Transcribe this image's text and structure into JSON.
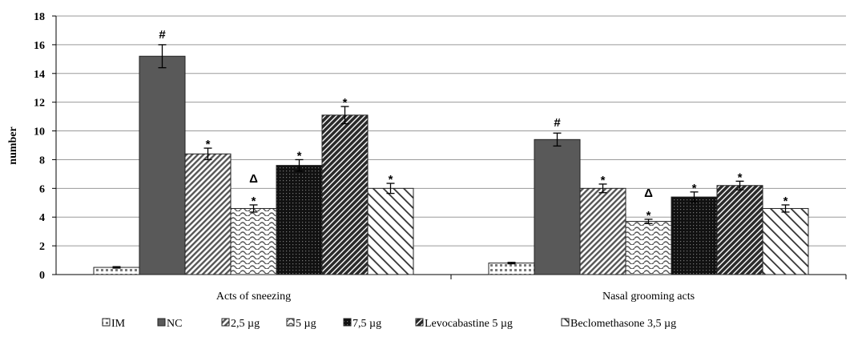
{
  "chart_data": {
    "type": "bar",
    "title": "",
    "xlabel": "",
    "ylabel": "number",
    "ylim": [
      0,
      18
    ],
    "yticks": [
      0,
      2,
      4,
      6,
      8,
      10,
      12,
      14,
      16,
      18
    ],
    "grid": true,
    "legend_position": "bottom",
    "categories": [
      "Acts of sneezing",
      "Nasal grooming acts"
    ],
    "series": [
      {
        "name": "IM",
        "values": [
          0.5,
          0.8
        ],
        "errors": [
          0.05,
          0.05
        ],
        "annotations": [
          "",
          ""
        ],
        "pattern": "dots",
        "color": "#ffffff"
      },
      {
        "name": "NC",
        "values": [
          15.2,
          9.4
        ],
        "errors": [
          0.8,
          0.45
        ],
        "annotations": [
          "#",
          "#"
        ],
        "pattern": "solid",
        "color": "#595959"
      },
      {
        "name": "2,5 µg",
        "values": [
          8.4,
          6.0
        ],
        "errors": [
          0.4,
          0.3
        ],
        "annotations": [
          "*",
          "*"
        ],
        "pattern": "dense-diagonal",
        "color": "#888888"
      },
      {
        "name": "5 µg",
        "values": [
          4.6,
          3.7
        ],
        "errors": [
          0.25,
          0.15
        ],
        "annotations": [
          "*Δ",
          "*Δ"
        ],
        "pattern": "waves",
        "color": "#ffffff"
      },
      {
        "name": "7,5  µg",
        "values": [
          7.6,
          5.4
        ],
        "errors": [
          0.4,
          0.35
        ],
        "annotations": [
          "*",
          "*"
        ],
        "pattern": "dark-dots",
        "color": "#1a1a1a"
      },
      {
        "name": "Levocabastine 5 µg",
        "values": [
          11.1,
          6.2
        ],
        "errors": [
          0.6,
          0.3
        ],
        "annotations": [
          "*",
          "*"
        ],
        "pattern": "dark-diagonal",
        "color": "#3a3a3a"
      },
      {
        "name": "Beclomethasone 3,5  µg",
        "values": [
          6.0,
          4.6
        ],
        "errors": [
          0.35,
          0.25
        ],
        "annotations": [
          "*",
          "*"
        ],
        "pattern": "wide-diagonal",
        "color": "#ffffff"
      }
    ]
  }
}
